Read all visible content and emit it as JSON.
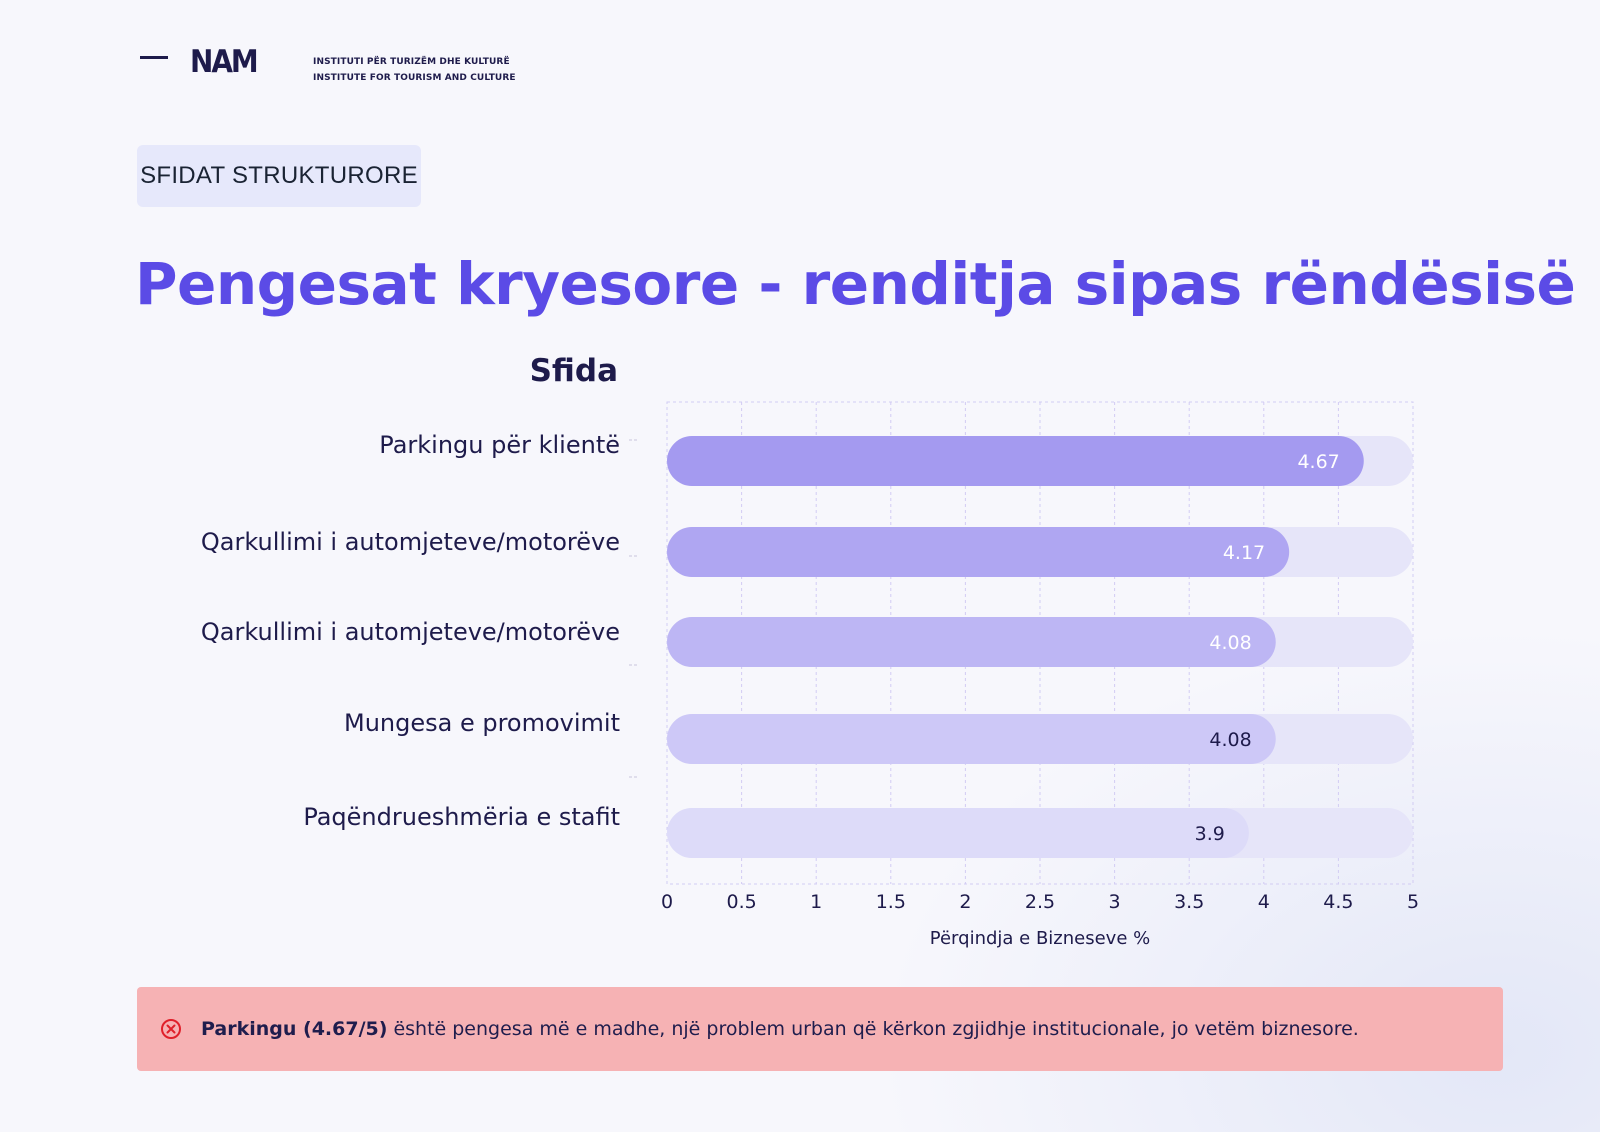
{
  "header": {
    "logo_text": "NAM",
    "institute_line1": "INSTITUTI PËR TURIZËM DHE KULTURË",
    "institute_line2": "INSTITUTE FOR TOURISM AND CULTURE"
  },
  "tag": "SFIDAT STRUKTURORE",
  "title": "Pengesat kryesore - renditja sipas rëndësisë",
  "chart_data": {
    "type": "bar",
    "orientation": "horizontal",
    "ylabel": "Sfida",
    "xlabel": "Përqindja e Bizneseve %",
    "xlim": [
      0,
      5
    ],
    "xticks": [
      "0",
      "0.5",
      "1",
      "1.5",
      "2",
      "2.5",
      "3",
      "3.5",
      "4",
      "4.5",
      "5"
    ],
    "categories": [
      "Parkingu për klientë",
      "Qarkullimi i automjeteve/motorëve",
      "Qarkullimi i automjeteve/motorëve",
      "Mungesa e promovimit",
      "Paqëndrueshmëria e stafit"
    ],
    "values": [
      4.67,
      4.17,
      4.08,
      4.08,
      3.9
    ],
    "value_labels": [
      "4.67",
      "4.17",
      "4.08",
      "4.08",
      "3.9"
    ],
    "bar_colors": [
      "#a49af0",
      "#afa6f2",
      "#bdb6f4",
      "#cdc8f7",
      "#dddbf9"
    ],
    "label_colors": [
      "#ffffff",
      "#ffffff",
      "#ffffff",
      "#1e1b4b",
      "#1e1b4b"
    ],
    "track_color": "#e6e5f9",
    "grid": true
  },
  "callout": {
    "bold": "Parkingu (4.67/5)",
    "text": "është pengesa më e madhe, një problem urban që kërkon zgjidhje institucionale, jo vetëm biznesore.",
    "icon": "x-circle-icon",
    "color": "#f6b2b4"
  }
}
